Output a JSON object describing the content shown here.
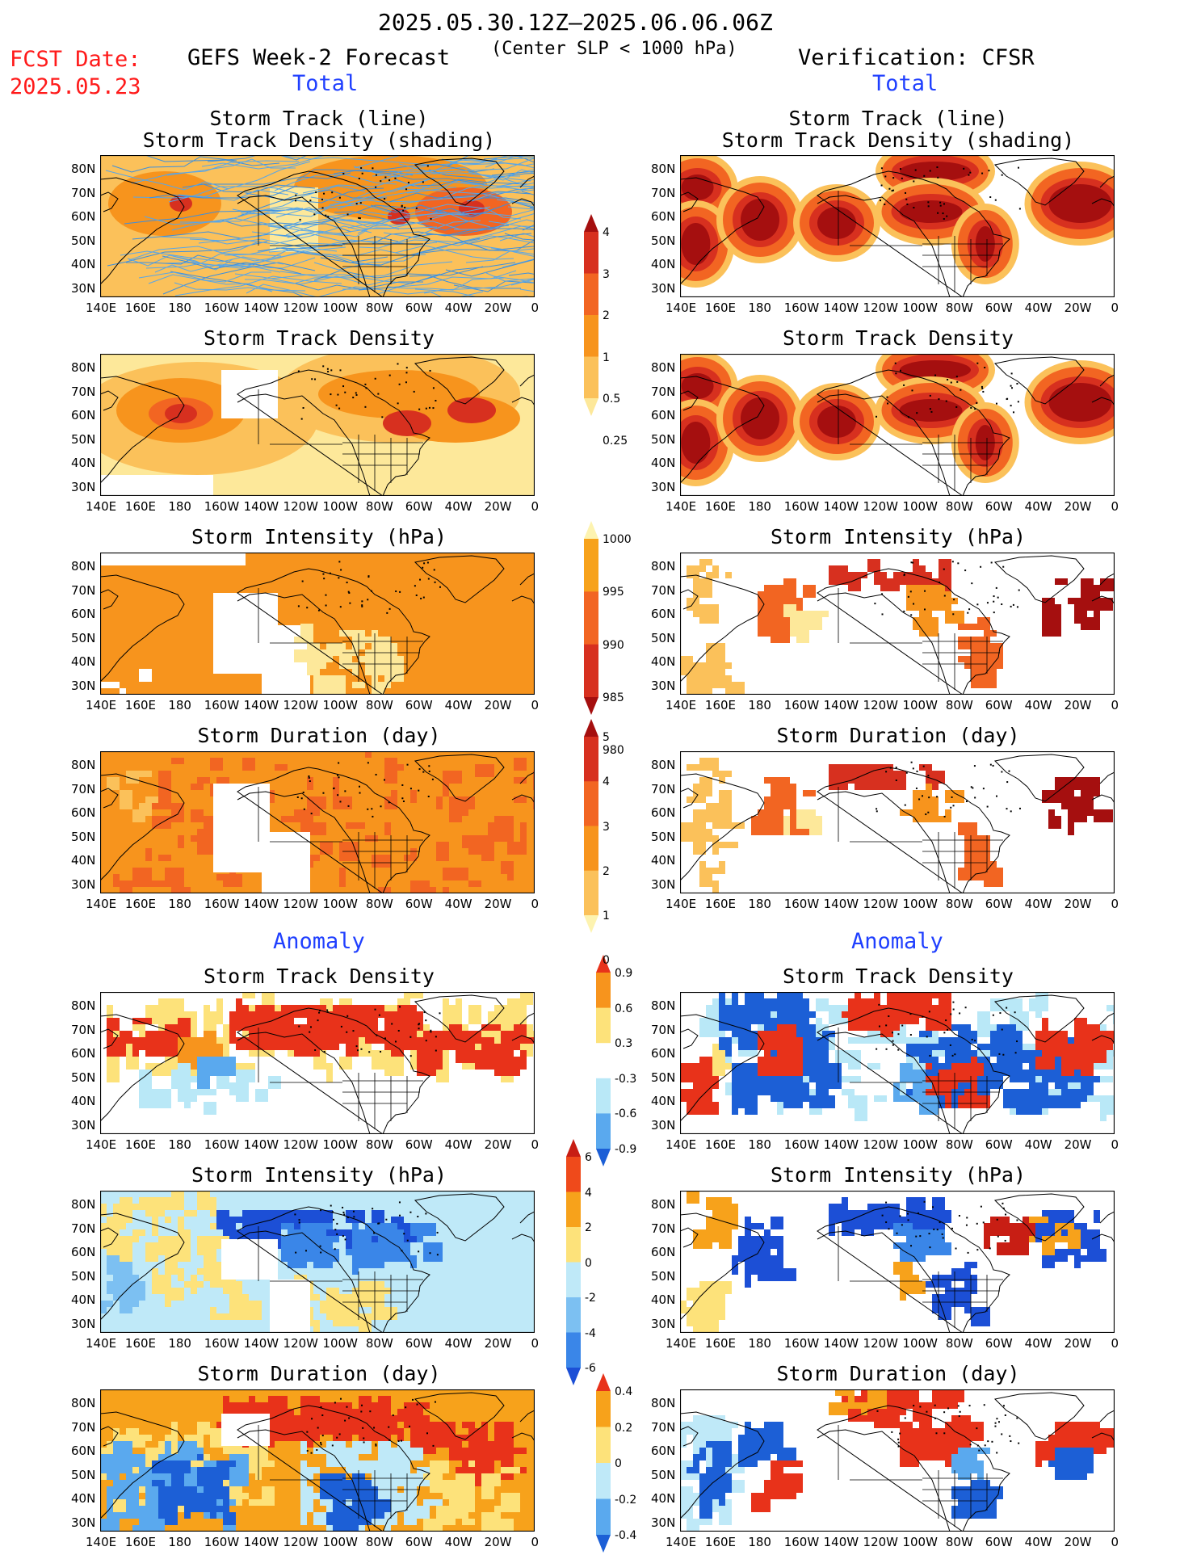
{
  "header": {
    "date_range": "2025.05.30.12Z–2025.06.06.06Z",
    "criterion": "(Center SLP < 1000 hPa)",
    "fcst_label": "FCST Date:",
    "fcst_date": "2025.05.23",
    "left_title": "GEFS Week-2 Forecast",
    "right_title": "Verification: CFSR",
    "total_label": "Total",
    "anomaly_label": "Anomaly"
  },
  "panel_titles": {
    "track_line": "Storm Track (line)",
    "track_shading": "Storm Track Density (shading)",
    "density": "Storm Track Density",
    "intensity": "Storm Intensity (hPa)",
    "duration": "Storm Duration (day)"
  },
  "axes": {
    "lon_labels": [
      "140E",
      "160E",
      "180",
      "160W",
      "140W",
      "120W",
      "100W",
      "80W",
      "60W",
      "40W",
      "20W",
      "0"
    ],
    "lat_labels": [
      "80N",
      "70N",
      "60N",
      "50N",
      "40N",
      "30N"
    ]
  },
  "colorbars": {
    "density_total": {
      "labels": [
        "4",
        "3",
        "2",
        "1",
        "0.5",
        "0.25"
      ],
      "colors": [
        "#a50f0f",
        "#d7301f",
        "#f26522",
        "#f7941d",
        "#fbc15a",
        "#fde89a"
      ]
    },
    "intensity_total": {
      "labels": [
        "1000",
        "995",
        "990",
        "985",
        "980"
      ],
      "colors": [
        "#fdf3b0",
        "#f7a21b",
        "#f26522",
        "#d7301f",
        "#a50f0f"
      ]
    },
    "duration_total": {
      "labels": [
        "5",
        "4",
        "3",
        "2",
        "1",
        "0"
      ],
      "colors": [
        "#a50f0f",
        "#d7301f",
        "#f26522",
        "#f7941d",
        "#fbc15a",
        "#fdf3b0"
      ]
    },
    "density_anom": {
      "labels": [
        "0.9",
        "0.6",
        "0.3",
        "-0.3",
        "-0.6",
        "-0.9"
      ],
      "colors": [
        "#e8321a",
        "#f7941d",
        "#fde27a",
        "#ffffff",
        "#b9e8f7",
        "#5aa9ee",
        "#1c5fd6"
      ]
    },
    "intensity_anom": {
      "labels": [
        "6",
        "4",
        "2",
        "0",
        "-2",
        "-4",
        "-6"
      ],
      "colors": [
        "#c81e14",
        "#ef4a1b",
        "#f7a21b",
        "#fde27a",
        "#bfe9f8",
        "#7cc0f2",
        "#3a86e8",
        "#1c4fd6"
      ]
    },
    "duration_anom": {
      "labels": [
        "0.4",
        "0.2",
        "0",
        "-0.2",
        "-0.4"
      ],
      "colors": [
        "#e8321a",
        "#f7a21b",
        "#fde27a",
        "#bfe9f8",
        "#5aa9ee",
        "#1c5fd6"
      ]
    }
  }
}
